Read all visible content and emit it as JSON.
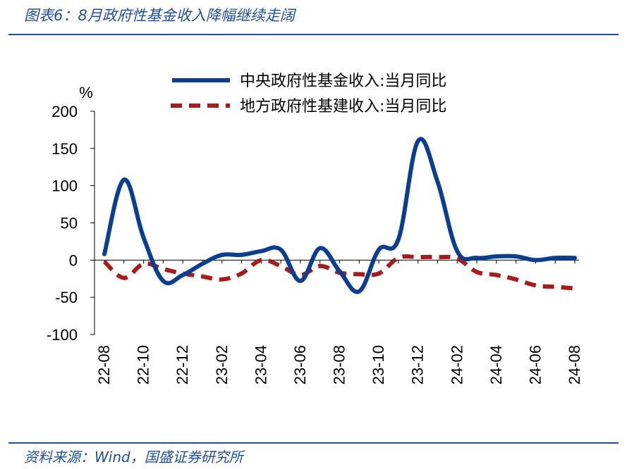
{
  "figure": {
    "title": "图表6：8月政府性基金收入降幅继续走阔",
    "source": "资料来源：Wind，国盛证券研究所"
  },
  "chart_data": {
    "type": "line",
    "ylabel": "%",
    "ylim": [
      -100,
      200
    ],
    "yticks": [
      200,
      150,
      100,
      50,
      0,
      -50,
      -100
    ],
    "x": [
      "22-08",
      "22-09",
      "22-10",
      "22-11",
      "22-12",
      "23-01",
      "23-02",
      "23-03",
      "23-04",
      "23-05",
      "23-06",
      "23-07",
      "23-08",
      "23-09",
      "23-10",
      "23-11",
      "23-12",
      "24-01",
      "24-02",
      "24-03",
      "24-04",
      "24-05",
      "24-06",
      "24-07",
      "24-08"
    ],
    "xtick_labels": [
      "22-08",
      "22-10",
      "22-12",
      "23-02",
      "23-04",
      "23-06",
      "23-08",
      "23-10",
      "23-12",
      "24-02",
      "24-04",
      "24-06",
      "24-08"
    ],
    "grid": false,
    "legend_position": "top",
    "series": [
      {
        "name": "中央政府性基金收入:当月同比",
        "style": "solid",
        "color": "#0b3d91",
        "values": [
          8,
          108,
          30,
          -28,
          -20,
          -5,
          7,
          7,
          12,
          14,
          -28,
          16,
          -15,
          -42,
          14,
          28,
          160,
          105,
          12,
          3,
          5,
          5,
          0,
          3,
          3
        ]
      },
      {
        "name": "地方政府性基建收入:当月同比",
        "style": "dashed",
        "color": "#a61c1c",
        "values": [
          -2,
          -24,
          -5,
          -12,
          -18,
          -22,
          -26,
          -18,
          0,
          -8,
          -20,
          -8,
          -17,
          -19,
          -18,
          3,
          4,
          4,
          2,
          -16,
          -20,
          -26,
          -34,
          -36,
          -38
        ]
      }
    ]
  }
}
